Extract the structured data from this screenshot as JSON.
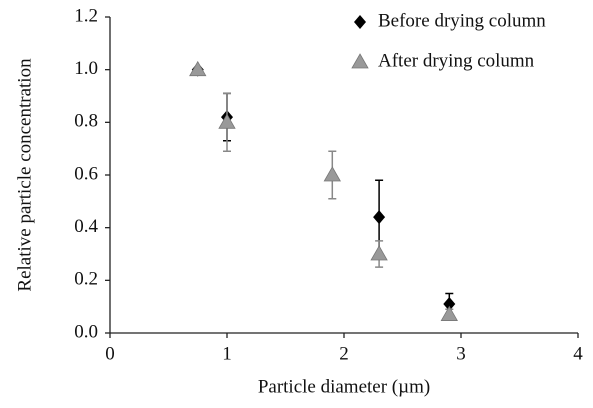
{
  "chart_data": {
    "type": "scatter",
    "xlabel": "Particle diameter (µm)",
    "ylabel": "Relative particle concentration",
    "xlim": [
      0,
      4
    ],
    "xticks": [
      0,
      1,
      2,
      3,
      4
    ],
    "ylim": [
      0,
      1.2
    ],
    "yticks": [
      {
        "value": 0,
        "label": "0.0"
      },
      0.2,
      0.4,
      0.6,
      0.8,
      {
        "value": 1,
        "label": "1.0"
      },
      1.2
    ],
    "grid": false,
    "legend": "top-right",
    "series": [
      {
        "name": "Before drying column",
        "color": "#000000",
        "marker": "diamond",
        "x": [
          0.75,
          1.0,
          2.3,
          2.9
        ],
        "values": [
          1.0,
          0.82,
          0.44,
          0.11
        ],
        "errors": [
          0,
          0.09,
          0.14,
          0.04
        ]
      },
      {
        "name": "After drying column",
        "color": "#999999",
        "marker": "triangle",
        "x": [
          0.75,
          1.0,
          1.9,
          2.3,
          2.9
        ],
        "values": [
          1.0,
          0.8,
          0.6,
          0.3,
          0.07
        ],
        "errors": [
          0,
          0.11,
          0.09,
          0.05,
          0.02
        ]
      }
    ]
  }
}
